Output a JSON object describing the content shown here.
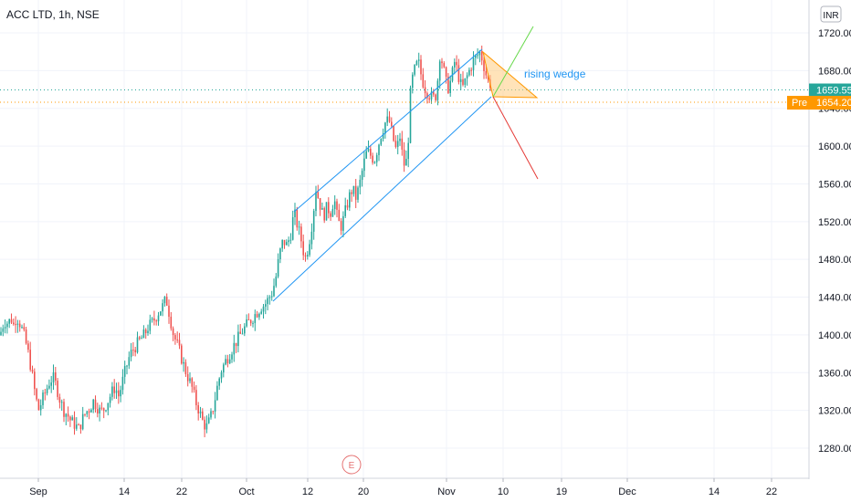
{
  "header": {
    "symbol": "ACC LTD",
    "interval": "1h",
    "exchange": "NSE",
    "title": "ACC LTD, 1h, NSE"
  },
  "currency_button": "INR",
  "annotation": {
    "text": "rising wedge"
  },
  "earnings_marker": {
    "label": "E"
  },
  "price_labels": {
    "last": {
      "value": "1659.55",
      "color": "#26a69a"
    },
    "pre": {
      "prefix": "Pre",
      "value": "1654.20",
      "color": "#ff9800"
    }
  },
  "colors": {
    "up": "#26a69a",
    "down": "#ef5350",
    "channel": "#2196f3",
    "wedge_fill": "#ffcc80",
    "wedge_line": "#ff9800",
    "arrow_up": "#66d94a",
    "arrow_down": "#e53935",
    "earnings": "#e57373",
    "grid": "#f0f3fa"
  },
  "chart_data": {
    "type": "candlestick",
    "title": "ACC LTD, 1h, NSE",
    "y_ticks": [
      1280,
      1320,
      1360,
      1400,
      1440,
      1480,
      1520,
      1560,
      1600,
      1640,
      1680,
      1720
    ],
    "y_tick_labels": [
      "1280.00",
      "1320.00",
      "1360.00",
      "1400.00",
      "1440.00",
      "1480.00",
      "1520.00",
      "1560.00",
      "1600.00",
      "1640.00",
      "1680.00",
      "1720.00"
    ],
    "ylim": [
      1240,
      1737
    ],
    "x_ticks": [
      "Sep",
      "14",
      "22",
      "Oct",
      "12",
      "20",
      "Nov",
      "10",
      "19",
      "Dec",
      "14",
      "22"
    ],
    "last_price": 1659.55,
    "pre_price": 1654.2,
    "grid": true,
    "price_path": [
      [
        0,
        1400
      ],
      [
        3,
        1410
      ],
      [
        6,
        1415
      ],
      [
        9,
        1412
      ],
      [
        12,
        1418
      ],
      [
        15,
        1410
      ],
      [
        18,
        1420
      ],
      [
        22,
        1412
      ],
      [
        26,
        1400
      ],
      [
        30,
        1385
      ],
      [
        34,
        1365
      ],
      [
        38,
        1340
      ],
      [
        42,
        1320
      ],
      [
        46,
        1330
      ],
      [
        50,
        1340
      ],
      [
        54,
        1350
      ],
      [
        58,
        1355
      ],
      [
        62,
        1345
      ],
      [
        66,
        1330
      ],
      [
        70,
        1320
      ],
      [
        74,
        1315
      ],
      [
        78,
        1308
      ],
      [
        82,
        1305
      ],
      [
        86,
        1300
      ],
      [
        90,
        1310
      ],
      [
        94,
        1318
      ],
      [
        98,
        1322
      ],
      [
        102,
        1330
      ],
      [
        106,
        1325
      ],
      [
        110,
        1318
      ],
      [
        114,
        1322
      ],
      [
        118,
        1330
      ],
      [
        122,
        1338
      ],
      [
        126,
        1345
      ],
      [
        130,
        1335
      ],
      [
        134,
        1350
      ],
      [
        138,
        1365
      ],
      [
        142,
        1378
      ],
      [
        146,
        1385
      ],
      [
        150,
        1390
      ],
      [
        154,
        1395
      ],
      [
        158,
        1400
      ],
      [
        162,
        1408
      ],
      [
        166,
        1412
      ],
      [
        170,
        1418
      ],
      [
        174,
        1425
      ],
      [
        178,
        1430
      ],
      [
        182,
        1438
      ],
      [
        186,
        1420
      ],
      [
        190,
        1400
      ],
      [
        194,
        1390
      ],
      [
        198,
        1378
      ],
      [
        202,
        1365
      ],
      [
        206,
        1355
      ],
      [
        210,
        1345
      ],
      [
        214,
        1330
      ],
      [
        218,
        1320
      ],
      [
        222,
        1308
      ],
      [
        226,
        1302
      ],
      [
        230,
        1310
      ],
      [
        234,
        1325
      ],
      [
        238,
        1345
      ],
      [
        242,
        1362
      ],
      [
        246,
        1370
      ],
      [
        250,
        1378
      ],
      [
        254,
        1385
      ],
      [
        258,
        1392
      ],
      [
        262,
        1398
      ],
      [
        266,
        1405
      ],
      [
        270,
        1410
      ],
      [
        274,
        1415
      ],
      [
        278,
        1420
      ],
      [
        282,
        1425
      ],
      [
        286,
        1430
      ],
      [
        290,
        1432
      ],
      [
        294,
        1438
      ],
      [
        298,
        1445
      ],
      [
        302,
        1460
      ],
      [
        306,
        1485
      ],
      [
        310,
        1500
      ],
      [
        314,
        1495
      ],
      [
        318,
        1505
      ],
      [
        322,
        1530
      ],
      [
        326,
        1515
      ],
      [
        330,
        1500
      ],
      [
        334,
        1480
      ],
      [
        338,
        1495
      ],
      [
        342,
        1520
      ],
      [
        346,
        1555
      ],
      [
        350,
        1540
      ],
      [
        354,
        1525
      ],
      [
        358,
        1535
      ],
      [
        362,
        1530
      ],
      [
        366,
        1545
      ],
      [
        370,
        1520
      ],
      [
        374,
        1515
      ],
      [
        378,
        1530
      ],
      [
        382,
        1545
      ],
      [
        386,
        1555
      ],
      [
        390,
        1545
      ],
      [
        394,
        1560
      ],
      [
        398,
        1580
      ],
      [
        402,
        1595
      ],
      [
        406,
        1590
      ],
      [
        410,
        1585
      ],
      [
        414,
        1600
      ],
      [
        418,
        1615
      ],
      [
        422,
        1625
      ],
      [
        426,
        1628
      ],
      [
        430,
        1610
      ],
      [
        434,
        1595
      ],
      [
        438,
        1610
      ],
      [
        442,
        1580
      ],
      [
        446,
        1585
      ],
      [
        450,
        1665
      ],
      [
        454,
        1680
      ],
      [
        458,
        1690
      ],
      [
        462,
        1672
      ],
      [
        466,
        1660
      ],
      [
        470,
        1655
      ],
      [
        474,
        1650
      ],
      [
        478,
        1655
      ],
      [
        482,
        1700
      ],
      [
        486,
        1680
      ],
      [
        490,
        1660
      ],
      [
        494,
        1670
      ],
      [
        498,
        1690
      ],
      [
        502,
        1675
      ],
      [
        506,
        1660
      ],
      [
        510,
        1670
      ],
      [
        514,
        1680
      ],
      [
        518,
        1690
      ],
      [
        522,
        1695
      ],
      [
        526,
        1700
      ],
      [
        530,
        1685
      ],
      [
        534,
        1670
      ],
      [
        538,
        1665
      ]
    ]
  }
}
